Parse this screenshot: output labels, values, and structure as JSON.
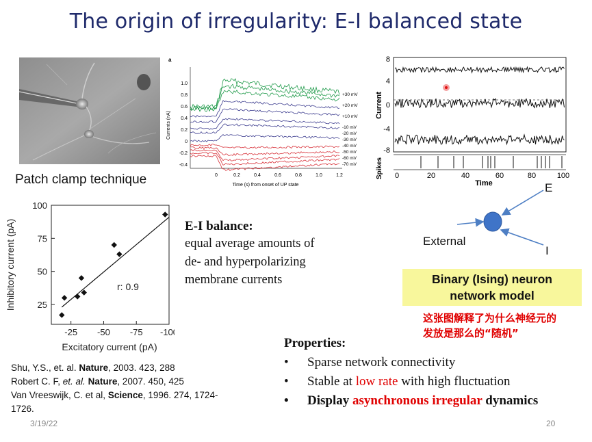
{
  "title": "The origin of irregularity: E-I balanced state",
  "patch_caption": "Patch clamp technique",
  "fig_a": {
    "panel_label": "a",
    "y_ticks": [
      "1.0",
      "0.8",
      "0.6",
      "0.4",
      "0.2",
      "0",
      "-0.2",
      "-0.4"
    ],
    "y_label": "Currents (nA)",
    "x_ticks": [
      "0",
      "0.2",
      "0.4",
      "0.6",
      "0.8",
      "1.0",
      "1.2"
    ],
    "x_label": "Time (s) from onset of UP state",
    "trace_labels": [
      "+30 mV",
      "+20 mV",
      "+10 mV",
      "-10 mV",
      "-20 mV",
      "-30 mV",
      "-40 mV",
      "-50 mV",
      "-60 mV",
      "-70 mV"
    ],
    "colors": {
      "green": "#1f9a4a",
      "blue": "#3d3d8f",
      "red": "#d8323a"
    }
  },
  "fig_spikes": {
    "y_ticks": [
      "8",
      "4",
      "0",
      "-4",
      "-8"
    ],
    "y_label": "Current",
    "spikes_label": "Spikes",
    "x_ticks": [
      "0",
      "20",
      "40",
      "60",
      "80",
      "100"
    ],
    "x_label": "Time"
  },
  "network": {
    "label_e": "E",
    "label_i": "I",
    "label_external": "External",
    "node_color": "#3f74c8"
  },
  "model_box": {
    "line1": "Binary (Ising) neuron",
    "line2": "network  model"
  },
  "cn_note": {
    "line1": "这张图解释了为什么神经元的",
    "line2": "发放是那么的“随机”"
  },
  "ei": {
    "title": "E-I balance:",
    "line1": "equal average amounts of",
    "line2": "de- and hyperpolarizing",
    "line3": "membrane currents"
  },
  "properties": {
    "title": "Properties:",
    "bullet": "•",
    "p1": "Sparse network connectivity",
    "p2_pre": "Stable at ",
    "p2_red": "low rate",
    "p2_post": " with high fluctuation",
    "p3_pre": "Display ",
    "p3_red": "asynchronous irregular",
    "p3_post": " dynamics"
  },
  "references": {
    "r1_pre": "Shu, Y.S., et. al. ",
    "r1_bold": "Nature",
    "r1_post": ", 2003. 423, 288",
    "r2_pre": "Robert C. F, ",
    "r2_ital": "et. al.",
    "r2_bold": " Nature",
    "r2_post": ", 2007. 450, 425",
    "r3_pre": "Van Vreeswijk, C.  et al, ",
    "r3_bold": "Science",
    "r3_post": ", 1996. 274, 1724-",
    "r3_cont": "1726."
  },
  "footer": {
    "date": "3/19/22",
    "page": "20"
  },
  "chart_data": {
    "type": "scatter",
    "xlabel": "Excitatory current (pA)",
    "ylabel": "Inhibitory current (pA)",
    "x_ticks": [
      "-25",
      "-50",
      "-75",
      "-100"
    ],
    "y_ticks": [
      "25",
      "50",
      "75",
      "100"
    ],
    "xlim": [
      -10,
      -100
    ],
    "ylim": [
      10,
      100
    ],
    "annotation": "r: 0.9",
    "points": [
      {
        "x": -18,
        "y": 17
      },
      {
        "x": -20,
        "y": 30
      },
      {
        "x": -30,
        "y": 31
      },
      {
        "x": -33,
        "y": 45
      },
      {
        "x": -35,
        "y": 34
      },
      {
        "x": -58,
        "y": 70
      },
      {
        "x": -62,
        "y": 63
      },
      {
        "x": -97,
        "y": 93
      }
    ],
    "fit_line": [
      {
        "x": -18,
        "y": 23
      },
      {
        "x": -100,
        "y": 91
      }
    ]
  }
}
